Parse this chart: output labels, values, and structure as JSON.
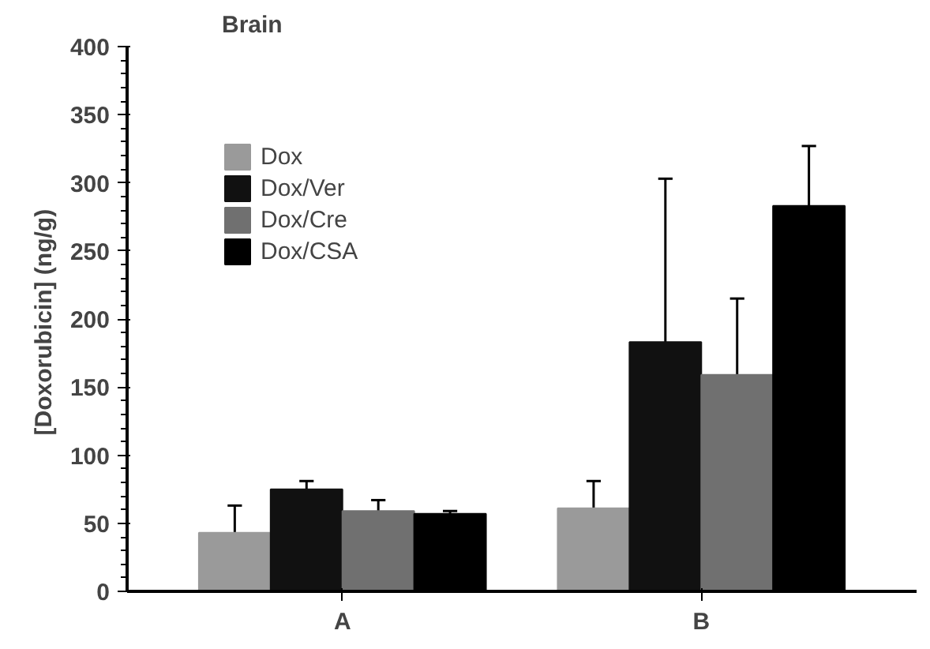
{
  "chart_data": {
    "type": "bar",
    "title": "Brain",
    "ylabel": "[Doxorubicin]  (ng/g)",
    "categories": [
      "A",
      "B"
    ],
    "series": [
      {
        "name": "Dox",
        "color": "#9a9a9a",
        "values": [
          43,
          61
        ],
        "errors": [
          20,
          20
        ]
      },
      {
        "name": "Dox/Ver",
        "color": "#111111",
        "values": [
          75,
          183
        ],
        "errors": [
          6,
          120
        ]
      },
      {
        "name": "Dox/Cre",
        "color": "#707070",
        "values": [
          59,
          159
        ],
        "errors": [
          8,
          56
        ]
      },
      {
        "name": "Dox/CSA",
        "color": "#000000",
        "values": [
          57,
          283
        ],
        "errors": [
          2,
          44
        ]
      }
    ],
    "ylim": [
      0,
      400
    ],
    "yticks": [
      0,
      50,
      100,
      150,
      200,
      250,
      300,
      350,
      400
    ],
    "grid": false,
    "legend": "top left"
  }
}
